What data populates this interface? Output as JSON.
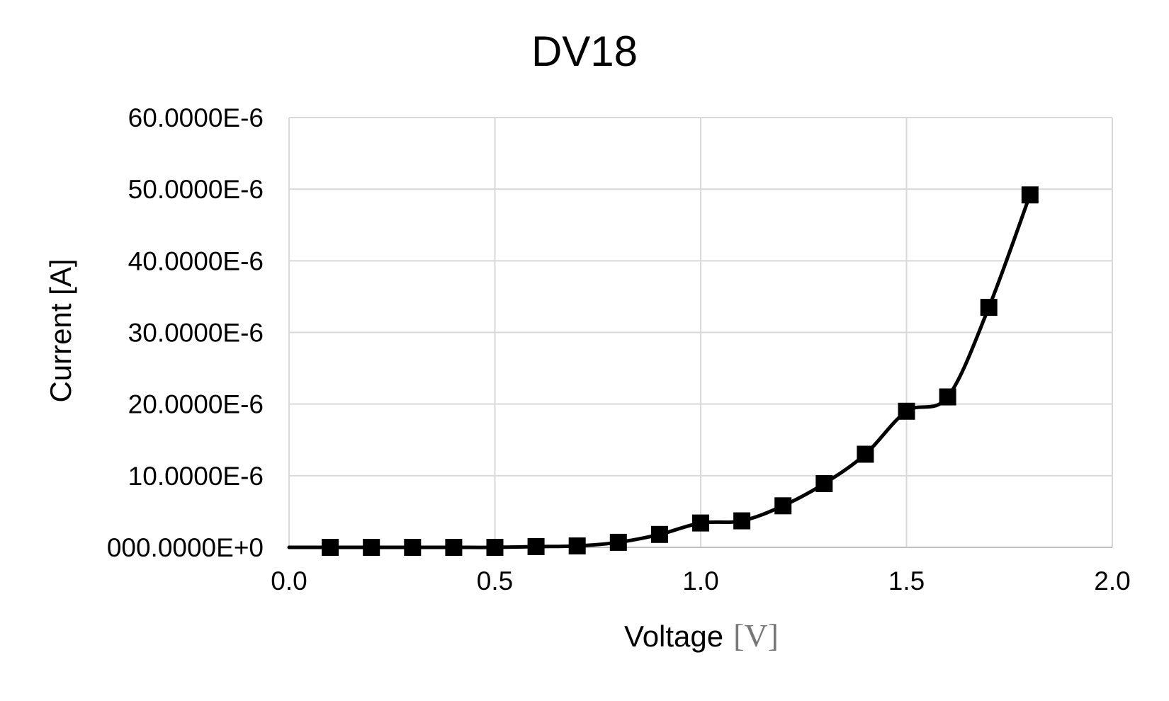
{
  "chart_data": {
    "type": "line",
    "title": "DV18",
    "xlabel": "Voltage",
    "xlabel_unit": "[V]",
    "ylabel": "Current [A]",
    "xlim": [
      0,
      2
    ],
    "ylim": [
      0,
      6e-05
    ],
    "x_ticks": [
      0,
      0.5,
      1,
      1.5,
      2
    ],
    "x_tick_labels": [
      "0.0",
      "0.5",
      "1.0",
      "1.5",
      "2.0"
    ],
    "y_ticks": [
      0,
      1e-05,
      2e-05,
      3e-05,
      4e-05,
      5e-05,
      6e-05
    ],
    "y_tick_labels": [
      "000.0000E+0",
      "10.0000E-6",
      "20.0000E-6",
      "30.0000E-6",
      "40.0000E-6",
      "50.0000E-6",
      "60.0000E-6"
    ],
    "grid": true,
    "legend": "none",
    "marker": "square",
    "series": [
      {
        "x": [
          0.1,
          0.2,
          0.3,
          0.4,
          0.5,
          0.6,
          0.7,
          0.8,
          0.9,
          1.0,
          1.1,
          1.2,
          1.3,
          1.4,
          1.5,
          1.6,
          1.7,
          1.8
        ],
        "values": [
          0,
          0,
          0,
          0,
          0,
          1e-07,
          2e-07,
          7e-07,
          1.8e-06,
          3.4e-06,
          3.7e-06,
          5.8e-06,
          8.9e-06,
          1.3e-05,
          1.9e-05,
          2.1e-05,
          3.35e-05,
          4.92e-05
        ]
      }
    ]
  }
}
